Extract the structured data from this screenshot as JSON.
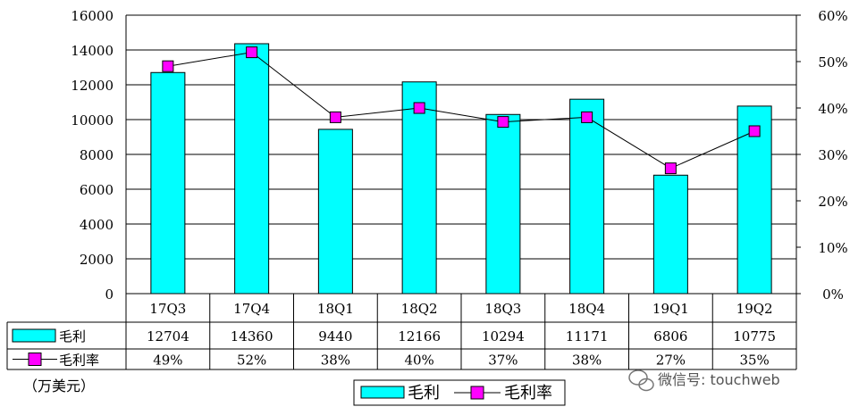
{
  "chart_data": {
    "type": "bar",
    "categories": [
      "17Q3",
      "17Q4",
      "18Q1",
      "18Q2",
      "18Q3",
      "18Q4",
      "19Q1",
      "19Q2"
    ],
    "series": [
      {
        "name": "毛利",
        "kind": "bar",
        "axis": "left",
        "color": "#00FFFF",
        "values": [
          12704,
          14360,
          9440,
          12166,
          10294,
          11171,
          6806,
          10775
        ]
      },
      {
        "name": "毛利率",
        "kind": "line",
        "axis": "right",
        "color": "#FF00FF",
        "values": [
          49,
          52,
          38,
          40,
          37,
          38,
          27,
          35
        ]
      }
    ],
    "left_axis": {
      "min": 0,
      "max": 16000,
      "ticks": [
        "0",
        "2000",
        "4000",
        "6000",
        "8000",
        "10000",
        "12000",
        "14000",
        "16000"
      ]
    },
    "right_axis": {
      "min": 0,
      "max": 60,
      "ticks": [
        "0%",
        "10%",
        "20%",
        "30%",
        "40%",
        "50%",
        "60%"
      ]
    },
    "table": {
      "rows": [
        {
          "label": "毛利",
          "values": [
            "12704",
            "14360",
            "9440",
            "12166",
            "10294",
            "11171",
            "6806",
            "10775"
          ]
        },
        {
          "label": "毛利率",
          "values": [
            "49%",
            "52%",
            "38%",
            "40%",
            "37%",
            "38%",
            "27%",
            "35%"
          ]
        }
      ]
    },
    "unit_label": "（万美元）",
    "legend": [
      "毛利",
      "毛利率"
    ],
    "legend_position": "bottom",
    "grid": true
  },
  "watermark": "微信号: touchweb"
}
